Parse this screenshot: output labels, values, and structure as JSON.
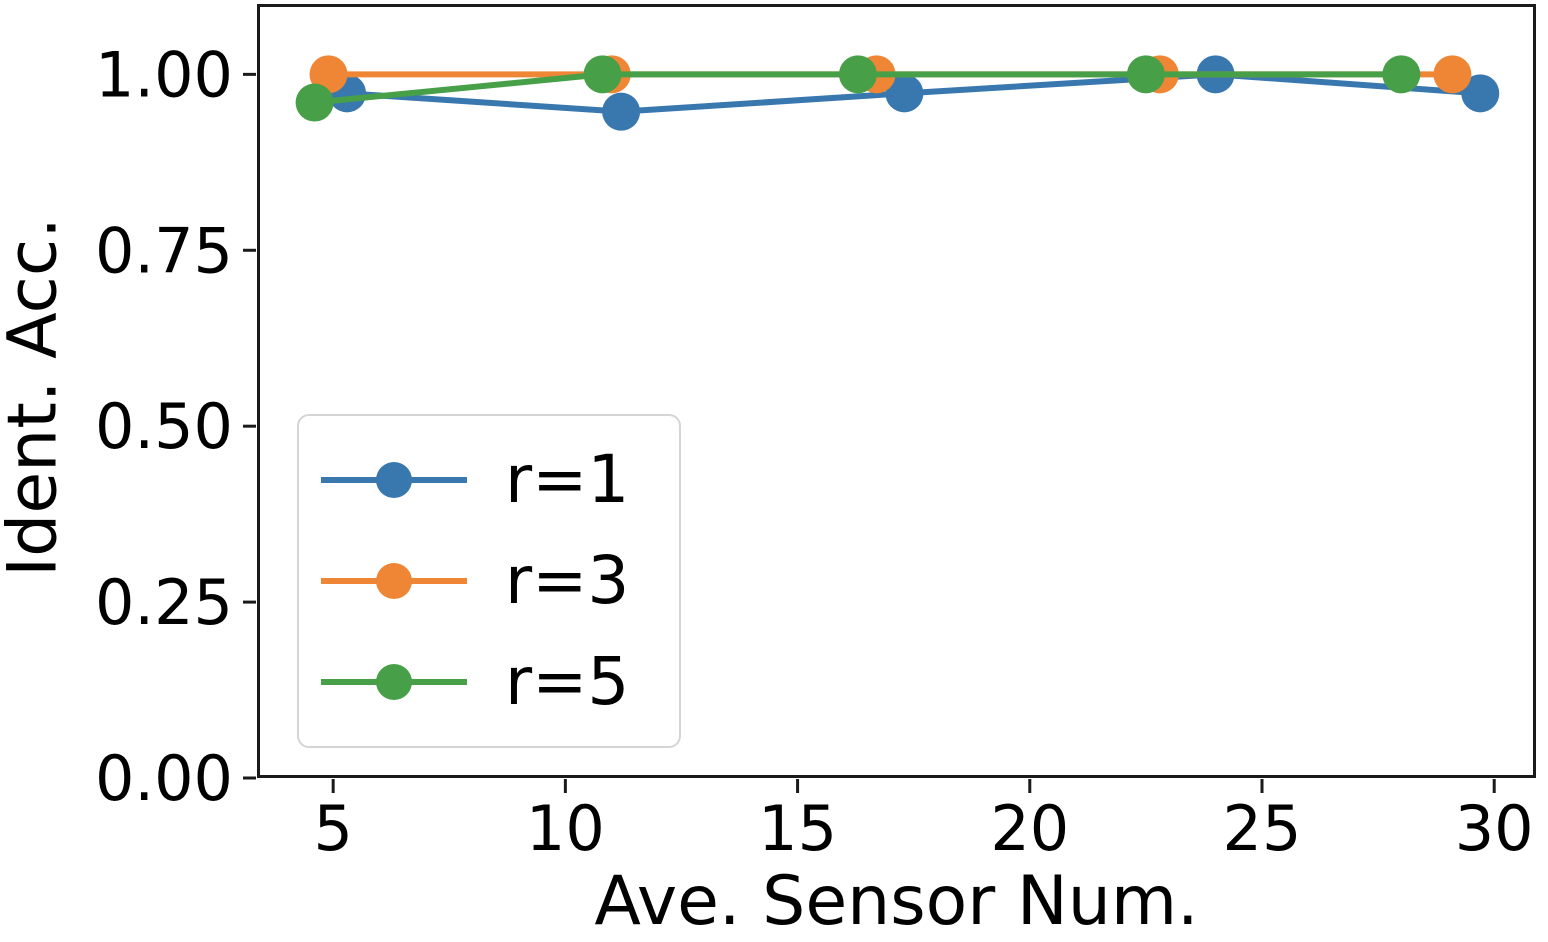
{
  "figure": {
    "background": "#ffffff",
    "spine_color": "#1a1a1a",
    "tick_color": "#1a1a1a",
    "text_color": "#000000",
    "legend_border_color": "#d5d5d5"
  },
  "chart_data": {
    "type": "line",
    "title": "",
    "xlabel": "Ave. Sensor Num.",
    "ylabel": "Ident. Acc.",
    "xlim": [
      3.36,
      30.9
    ],
    "ylim": [
      0,
      1.1
    ],
    "xticks": [
      5,
      10,
      15,
      20,
      25,
      30
    ],
    "yticks": [
      0,
      0.25,
      0.5,
      0.75,
      1.0
    ],
    "ytick_labels": [
      "0.00",
      "0.25",
      "0.50",
      "0.75",
      "1.00"
    ],
    "grid": false,
    "marker": "circle",
    "legend_position": "inside-lower-left",
    "series": [
      {
        "name": "r=1",
        "color": "#3878af",
        "points": [
          [
            5.3,
            0.973
          ],
          [
            11.2,
            0.947
          ],
          [
            17.3,
            0.973
          ],
          [
            24.0,
            1.0
          ],
          [
            29.7,
            0.973
          ]
        ]
      },
      {
        "name": "r=3",
        "color": "#ef8636",
        "points": [
          [
            4.9,
            1.0
          ],
          [
            11.0,
            1.0
          ],
          [
            16.7,
            1.0
          ],
          [
            22.8,
            1.0
          ],
          [
            29.1,
            1.0
          ]
        ]
      },
      {
        "name": "r=5",
        "color": "#47a047",
        "points": [
          [
            4.6,
            0.96
          ],
          [
            10.8,
            1.0
          ],
          [
            16.3,
            1.0
          ],
          [
            22.5,
            1.0
          ],
          [
            28.0,
            1.0
          ]
        ]
      }
    ]
  }
}
